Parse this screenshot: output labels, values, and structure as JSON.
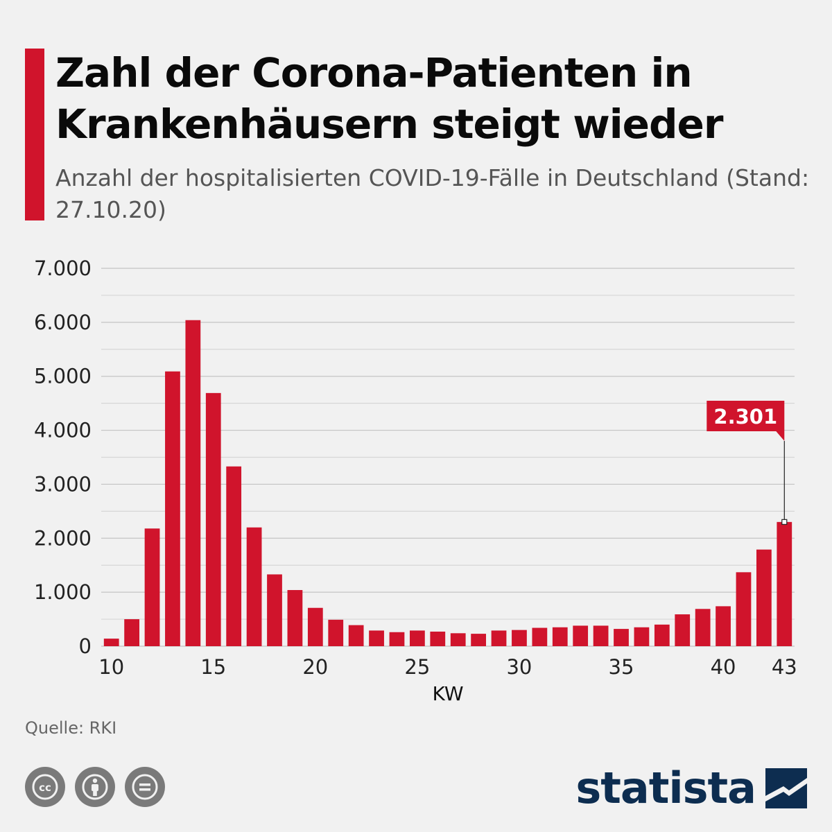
{
  "header": {
    "title": "Zahl der Corona-Patienten in Krankenhäusern steigt wieder",
    "subtitle": "Anzahl der hospitalisierten COVID-19-Fälle in Deutschland (Stand: 27.10.20)"
  },
  "footer": {
    "source": "Quelle: RKI",
    "brand": "statista",
    "license_icons": [
      "cc-icon",
      "attribution-icon",
      "no-derivatives-icon"
    ]
  },
  "colors": {
    "accent": "#d0142c",
    "bar": "#d0142c",
    "brand": "#0d2d50",
    "grid": "#c8c8c8"
  },
  "chart_data": {
    "type": "bar",
    "title": "Zahl der Corona-Patienten in Krankenhäusern steigt wieder",
    "subtitle": "Anzahl der hospitalisierten COVID-19-Fälle in Deutschland (Stand: 27.10.20)",
    "xlabel": "KW",
    "ylabel": "",
    "x": [
      10,
      11,
      12,
      13,
      14,
      15,
      16,
      17,
      18,
      19,
      20,
      21,
      22,
      23,
      24,
      25,
      26,
      27,
      28,
      29,
      30,
      31,
      32,
      33,
      34,
      35,
      36,
      37,
      38,
      39,
      40,
      41,
      42,
      43
    ],
    "values": [
      140,
      500,
      2180,
      5090,
      6040,
      4690,
      3330,
      2200,
      1330,
      1040,
      710,
      490,
      390,
      290,
      260,
      290,
      270,
      240,
      230,
      290,
      300,
      340,
      350,
      380,
      380,
      320,
      350,
      400,
      590,
      690,
      740,
      1370,
      1790,
      2301
    ],
    "xticks": [
      10,
      15,
      20,
      25,
      30,
      35,
      40,
      43
    ],
    "ylim": [
      0,
      7000
    ],
    "yticks": [
      0,
      1000,
      2000,
      3000,
      4000,
      5000,
      6000,
      7000
    ],
    "ytick_labels": [
      "0",
      "1.000",
      "2.000",
      "3.000",
      "4.000",
      "5.000",
      "6.000",
      "7.000"
    ],
    "grid": true,
    "annotation": {
      "x": 43,
      "label": "2.301"
    }
  }
}
